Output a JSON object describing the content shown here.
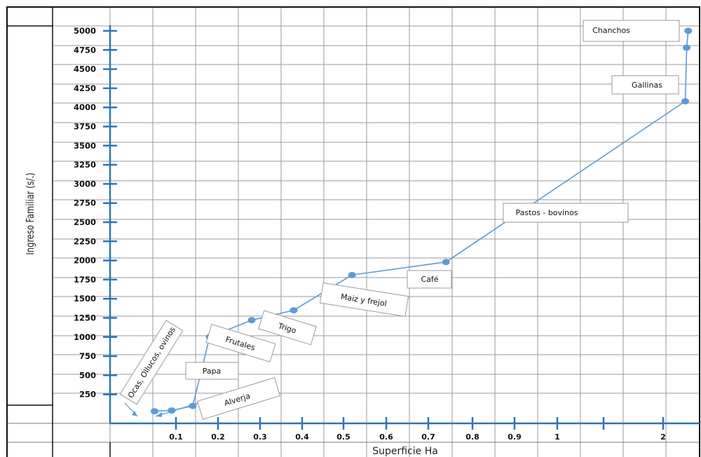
{
  "chart_data": {
    "type": "line",
    "xlabel": "Superficie Ha",
    "ylabel": "Ingreso Familiar (s/.)",
    "y_ticks": [
      250,
      500,
      750,
      1000,
      1250,
      1500,
      1750,
      2000,
      2250,
      2500,
      2750,
      3000,
      3250,
      3500,
      3750,
      4000,
      4250,
      4500,
      4750,
      5000
    ],
    "x_tick_labels": [
      "0.1",
      "0.2",
      "0.3",
      "0.4",
      "0.5",
      "0.6",
      "0.7",
      "0.8",
      "0.9",
      "1",
      "",
      "2"
    ],
    "ylim": [
      0,
      5000
    ],
    "grid": true,
    "series": [
      {
        "color": "#5b9bd5",
        "points": [
          {
            "x": 0.05,
            "y": 30
          },
          {
            "x": 0.09,
            "y": 40
          },
          {
            "x": 0.14,
            "y": 100
          },
          {
            "x": 0.18,
            "y": 1000
          },
          {
            "x": 0.28,
            "y": 1220
          },
          {
            "x": 0.38,
            "y": 1350
          },
          {
            "x": 0.52,
            "y": 1810
          },
          {
            "x": 0.74,
            "y": 1980
          },
          {
            "x": 2.3,
            "y": 4080
          },
          {
            "x": 2.32,
            "y": 4780
          },
          {
            "x": 2.34,
            "y": 5000
          }
        ]
      }
    ],
    "annotations": [
      "Chanchos",
      "Gallinas",
      "Pastos - bovinos",
      "Café",
      "Maiz y frejol",
      "Trigo",
      "Frutales",
      "Papa",
      "Alverja",
      "Ocas, Ollucos, ovinos"
    ]
  }
}
